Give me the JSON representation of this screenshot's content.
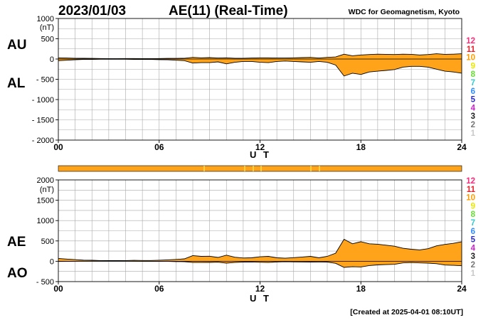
{
  "header": {
    "date": "2023/01/03",
    "title": "AE(11) (Real-Time)",
    "source": "WDC for Geomagnetism, Kyoto"
  },
  "footer": {
    "created": "[Created at 2025-04-01 08:10UT]"
  },
  "station_scale": [
    "12",
    "11",
    "10",
    "9",
    "8",
    "7",
    "6",
    "5",
    "4",
    "3",
    "2",
    "1"
  ],
  "station_colors": [
    "#ff2a7a",
    "#e8202a",
    "#ff9d00",
    "#e8e800",
    "#66dd33",
    "#33cccc",
    "#2d8cff",
    "#2a2acc",
    "#cc22cc",
    "#222222",
    "#777777",
    "#c8c8c8"
  ],
  "fill_color": "#ffa31a",
  "chart_data": [
    {
      "id": "au_al",
      "type": "area",
      "unit_label": "(nT)",
      "label_upper": "AU",
      "label_lower": "AL",
      "xlabel": "U T",
      "xlim": [
        0,
        24
      ],
      "xticks": [
        0,
        6,
        12,
        18,
        24
      ],
      "xtick_labels": [
        "00",
        "06",
        "12",
        "18",
        "24"
      ],
      "ylim": [
        -2000,
        1000
      ],
      "yticks": [
        1000,
        500,
        0,
        -500,
        -1000,
        -1500,
        -2000
      ],
      "ytick_labels": [
        "1000",
        "500",
        "0",
        "- 500",
        "- 1000",
        "- 1500",
        "- 2000"
      ],
      "grid": true,
      "x": [
        0,
        0.5,
        1,
        1.5,
        2,
        2.5,
        3,
        3.5,
        4,
        4.5,
        5,
        5.5,
        6,
        6.5,
        7,
        7.5,
        8,
        8.5,
        9,
        9.5,
        10,
        10.5,
        11,
        11.5,
        12,
        12.5,
        13,
        13.5,
        14,
        14.5,
        15,
        15.5,
        16,
        16.5,
        17,
        17.5,
        18,
        18.5,
        19,
        19.5,
        20,
        20.5,
        21,
        21.5,
        22,
        22.5,
        23,
        23.5,
        24
      ],
      "series": [
        {
          "name": "AU",
          "values": [
            30,
            25,
            20,
            18,
            15,
            12,
            10,
            10,
            12,
            12,
            10,
            10,
            12,
            15,
            15,
            20,
            40,
            30,
            35,
            25,
            30,
            20,
            20,
            25,
            30,
            30,
            25,
            25,
            30,
            35,
            40,
            25,
            40,
            50,
            120,
            80,
            100,
            110,
            120,
            115,
            110,
            120,
            115,
            100,
            110,
            130,
            115,
            120,
            130
          ]
        },
        {
          "name": "AL",
          "values": [
            -40,
            -30,
            -20,
            -10,
            -10,
            -5,
            -5,
            -5,
            -5,
            -10,
            -10,
            -10,
            -15,
            -20,
            -30,
            -40,
            -100,
            -90,
            -90,
            -70,
            -120,
            -80,
            -60,
            -60,
            -80,
            -90,
            -60,
            -50,
            -60,
            -70,
            -80,
            -60,
            -80,
            -150,
            -420,
            -350,
            -380,
            -320,
            -300,
            -280,
            -260,
            -200,
            -180,
            -180,
            -200,
            -250,
            -300,
            -320,
            -350
          ]
        }
      ]
    },
    {
      "id": "ae_ao",
      "type": "area",
      "unit_label": "(nT)",
      "label_upper": "AE",
      "label_lower": "AO",
      "xlabel": "U T",
      "xlim": [
        0,
        24
      ],
      "xticks": [
        0,
        6,
        12,
        18,
        24
      ],
      "xtick_labels": [
        "00",
        "06",
        "12",
        "18",
        "24"
      ],
      "ylim": [
        -500,
        2000
      ],
      "yticks": [
        2000,
        1500,
        1000,
        500,
        0,
        -500
      ],
      "ytick_labels": [
        "2000",
        "1500",
        "1000",
        "500",
        "0",
        "- 500"
      ],
      "grid": true,
      "x": [
        0,
        0.5,
        1,
        1.5,
        2,
        2.5,
        3,
        3.5,
        4,
        4.5,
        5,
        5.5,
        6,
        6.5,
        7,
        7.5,
        8,
        8.5,
        9,
        9.5,
        10,
        10.5,
        11,
        11.5,
        12,
        12.5,
        13,
        13.5,
        14,
        14.5,
        15,
        15.5,
        16,
        16.5,
        17,
        17.5,
        18,
        18.5,
        19,
        19.5,
        20,
        20.5,
        21,
        21.5,
        22,
        22.5,
        23,
        23.5,
        24
      ],
      "series": [
        {
          "name": "AE",
          "values": [
            70,
            55,
            40,
            28,
            25,
            17,
            15,
            15,
            17,
            22,
            20,
            20,
            27,
            35,
            45,
            60,
            140,
            120,
            125,
            95,
            150,
            100,
            80,
            85,
            110,
            120,
            85,
            75,
            90,
            105,
            120,
            85,
            120,
            200,
            540,
            430,
            480,
            430,
            420,
            395,
            370,
            320,
            295,
            280,
            310,
            380,
            415,
            440,
            480
          ]
        },
        {
          "name": "AO",
          "values": [
            -5,
            -3,
            0,
            4,
            3,
            4,
            3,
            3,
            4,
            1,
            0,
            0,
            -2,
            -3,
            -8,
            -10,
            -30,
            -30,
            -28,
            -22,
            -45,
            -30,
            -20,
            -18,
            -25,
            -30,
            -18,
            -12,
            -15,
            -18,
            -20,
            -18,
            -20,
            -50,
            -150,
            -135,
            -140,
            -105,
            -90,
            -82,
            -75,
            -40,
            -32,
            -40,
            -45,
            -60,
            -92,
            -100,
            -110
          ]
        }
      ]
    }
  ]
}
